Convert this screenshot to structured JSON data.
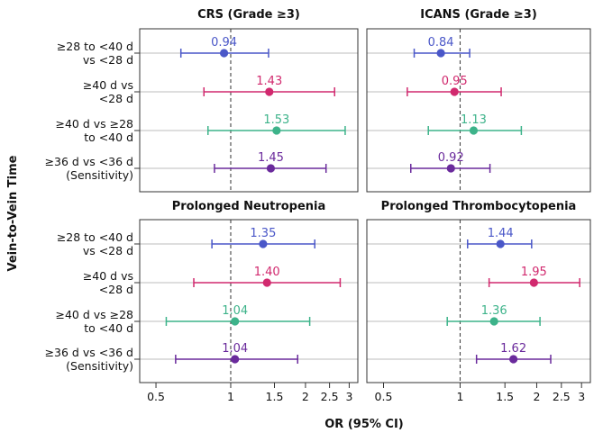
{
  "chart_data": {
    "type": "forest",
    "y_axis_title": "Vein-to-Vein Time",
    "x_axis_title": "OR (95% CI)",
    "x_scale": "log",
    "x_range": [
      0.43,
      3.25
    ],
    "x_ticks": [
      0.5,
      1,
      1.5,
      2,
      2.5,
      3
    ],
    "x_tick_labels": [
      "0.5",
      "1",
      "1.5",
      "2",
      "2.5",
      "3"
    ],
    "reference_line": 1,
    "grid": "horizontal row lines",
    "rows": [
      {
        "line1": "≥28 to <40 d",
        "line2": "vs <28 d"
      },
      {
        "line1": "≥40 d vs",
        "line2": "<28 d"
      },
      {
        "line1": "≥40 d vs ≥28",
        "line2": "to <40 d"
      },
      {
        "line1": "≥36 d vs <36 d",
        "line2": "(Sensitivity)"
      }
    ],
    "row_colors": [
      "#4a57c8",
      "#d1296e",
      "#3db38a",
      "#6a2a9c"
    ],
    "panels": [
      {
        "title": "CRS (Grade ≥3)",
        "estimates": [
          {
            "or": 0.94,
            "low": 0.63,
            "high": 1.42,
            "label": "0.94"
          },
          {
            "or": 1.43,
            "low": 0.78,
            "high": 2.62,
            "label": "1.43"
          },
          {
            "or": 1.53,
            "low": 0.81,
            "high": 2.89,
            "label": "1.53"
          },
          {
            "or": 1.45,
            "low": 0.86,
            "high": 2.42,
            "label": "1.45"
          }
        ]
      },
      {
        "title": "ICANS (Grade ≥3)",
        "estimates": [
          {
            "or": 0.84,
            "low": 0.66,
            "high": 1.09,
            "label": "0.84"
          },
          {
            "or": 0.95,
            "low": 0.62,
            "high": 1.45,
            "label": "0.95"
          },
          {
            "or": 1.13,
            "low": 0.75,
            "high": 1.74,
            "label": "1.13"
          },
          {
            "or": 0.92,
            "low": 0.64,
            "high": 1.31,
            "label": "0.92"
          }
        ]
      },
      {
        "title": "Prolonged Neutropenia",
        "estimates": [
          {
            "or": 1.35,
            "low": 0.84,
            "high": 2.18,
            "label": "1.35"
          },
          {
            "or": 1.4,
            "low": 0.71,
            "high": 2.76,
            "label": "1.40"
          },
          {
            "or": 1.04,
            "low": 0.55,
            "high": 2.08,
            "label": "1.04"
          },
          {
            "or": 1.04,
            "low": 0.6,
            "high": 1.86,
            "label": "1.04"
          }
        ]
      },
      {
        "title": "Prolonged Thrombocytopenia",
        "estimates": [
          {
            "or": 1.44,
            "low": 1.07,
            "high": 1.91,
            "label": "1.44"
          },
          {
            "or": 1.95,
            "low": 1.3,
            "high": 2.95,
            "label": "1.95"
          },
          {
            "or": 1.36,
            "low": 0.89,
            "high": 2.06,
            "label": "1.36"
          },
          {
            "or": 1.62,
            "low": 1.16,
            "high": 2.27,
            "label": "1.62"
          }
        ]
      }
    ]
  }
}
